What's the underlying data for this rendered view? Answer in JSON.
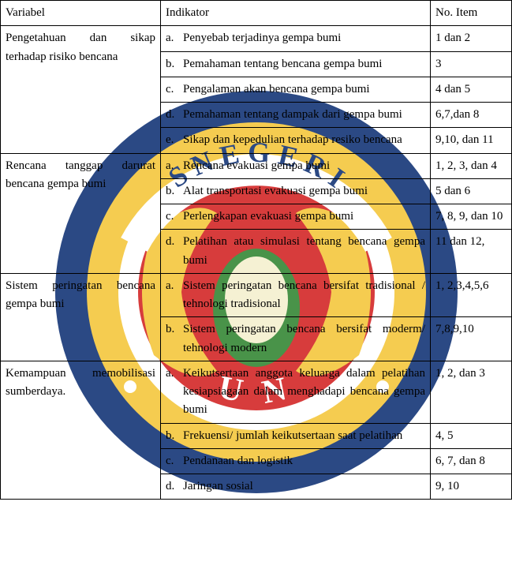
{
  "headers": {
    "variabel": "Variabel",
    "indikator": "Indikator",
    "no_item": "No. Item"
  },
  "rows": [
    {
      "variabel": "Pengetahuan dan sikap terhadap risiko bencana",
      "indicators": [
        {
          "letter": "a.",
          "text": "Penyebab terjadinya gempa bumi",
          "item": " 1 dan 2"
        },
        {
          "letter": "b.",
          "text": "Pemahaman tentang bencana gempa bumi",
          "item": "3"
        },
        {
          "letter": "c.",
          "text": "Pengalaman akan bencana gempa bumi",
          "item": "4 dan 5"
        },
        {
          "letter": "d.",
          "text": "Pemahaman tentang dampak dari gempa bumi",
          "item": "6,7,dan 8"
        },
        {
          "letter": "e.",
          "text": "Sikap dan kepedulian terhadap resiko bencana",
          "item": "9,10, dan 11"
        }
      ]
    },
    {
      "variabel": "Rencana tanggap darurat bencana gempa bumi",
      "indicators": [
        {
          "letter": "a.",
          "text": "Rencana evakuasi gempa bumi",
          "item": "1, 2, 3, dan 4"
        },
        {
          "letter": "b.",
          "text": "Alat transportasi evakuasi gempa bumi",
          "item": "5 dan 6"
        },
        {
          "letter": "c.",
          "text": "Perlengkapan evakuasi gempa bumi",
          "item": "7, 8, 9, dan 10"
        },
        {
          "letter": "d.",
          "text": "Pelatihan atau simulasi tentang bencana gempa bumi",
          "item": "11 dan 12,"
        }
      ]
    },
    {
      "variabel": "Sistem peringatan bencana gempa bumi",
      "indicators": [
        {
          "letter": "a.",
          "text": "Sistem peringatan bencana bersifat tradisional / tehnologi tradisional",
          "item": "1, 2,3,4,5,6"
        },
        {
          "letter": "b.",
          "text": "Sistem peringatan bencana bersifat moderm/ tehnologi modern",
          "item": "7,8,9,10"
        }
      ]
    },
    {
      "variabel": "Kemampuan memobilisasi sumberdaya.",
      "indicators": [
        {
          "letter": "a.",
          "text": "Keikutsertaan anggota keluarga dalam pelatihan kesiapsiagaan dalam menghadapi bencana gempa bumi",
          "item": "1, 2, dan 3"
        },
        {
          "letter": "b.",
          "text": "Frekuensi/ jumlah keikutsertaan saat pelatihan",
          "item": "4, 5"
        },
        {
          "letter": "c.",
          "text": "Pendanaan dan logistik",
          "item": "6, 7, dan 8"
        },
        {
          "letter": "d.",
          "text": "Jaringan sosial",
          "item": "9, 10"
        }
      ]
    }
  ]
}
